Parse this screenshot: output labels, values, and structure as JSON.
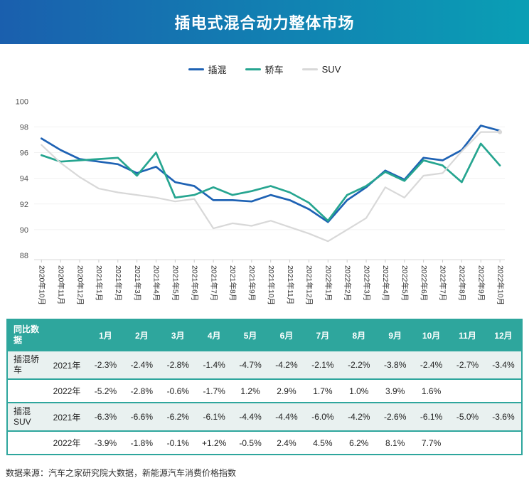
{
  "header": {
    "title": "插电式混合动力整体市场",
    "gradient_left": "#1a5fae",
    "gradient_right": "#0a9fb5"
  },
  "legend": [
    {
      "label": "插混",
      "color": "#1e62b4"
    },
    {
      "label": "轿车",
      "color": "#26a590"
    },
    {
      "label": "SUV",
      "color": "#d8d8d8"
    }
  ],
  "chart_data": {
    "type": "line",
    "title": "",
    "xlabel": "",
    "ylabel": "",
    "ylim": [
      88,
      100
    ],
    "yticks": [
      88,
      90,
      92,
      94,
      96,
      98,
      100
    ],
    "grid": "faint-horizontal",
    "legend_position": "top",
    "categories": [
      "2020年10月",
      "2020年11月",
      "2020年12月",
      "2021年1月",
      "2021年2月",
      "2021年3月",
      "2021年4月",
      "2021年5月",
      "2021年6月",
      "2021年7月",
      "2021年8月",
      "2021年9月",
      "2021年10月",
      "2021年11月",
      "2021年12月",
      "2022年1月",
      "2022年2月",
      "2022年3月",
      "2022年4月",
      "2022年5月",
      "2022年6月",
      "2022年7月",
      "2022年8月",
      "2022年9月",
      "2022年10月"
    ],
    "series": [
      {
        "name": "插混",
        "color": "#1e62b4",
        "values": [
          97.1,
          96.2,
          95.5,
          95.3,
          95.1,
          94.4,
          94.9,
          93.7,
          93.4,
          92.3,
          92.3,
          92.2,
          92.7,
          92.3,
          91.6,
          90.6,
          92.3,
          93.3,
          94.6,
          93.9,
          95.6,
          95.4,
          96.2,
          98.1,
          97.7
        ]
      },
      {
        "name": "轿车",
        "color": "#26a590",
        "values": [
          95.8,
          95.3,
          95.4,
          95.5,
          95.6,
          94.2,
          96.0,
          92.5,
          92.7,
          93.3,
          92.7,
          93.0,
          93.4,
          92.9,
          92.1,
          90.7,
          92.7,
          93.4,
          94.5,
          93.8,
          95.4,
          95.0,
          93.7,
          96.7,
          95.0
        ]
      },
      {
        "name": "SUV",
        "color": "#d8d8d8",
        "values": [
          96.6,
          95.2,
          94.1,
          93.2,
          92.9,
          92.7,
          92.5,
          92.2,
          92.4,
          90.1,
          90.5,
          90.3,
          90.7,
          90.2,
          89.7,
          89.1,
          90.0,
          90.9,
          93.3,
          92.5,
          94.2,
          94.4,
          96.1,
          97.6,
          97.6
        ]
      }
    ]
  },
  "table": {
    "accent": "#2ea69d",
    "shade_bg": "#e9f1f0",
    "corner": "同比数据",
    "months": [
      "1月",
      "2月",
      "3月",
      "4月",
      "5月",
      "6月",
      "7月",
      "8月",
      "9月",
      "10月",
      "11月",
      "12月"
    ],
    "rows": [
      {
        "group": "插混轿车",
        "year": "2021年",
        "shaded": true,
        "values": [
          "-2.3%",
          "-2.4%",
          "-2.8%",
          "-1.4%",
          "-4.7%",
          "-4.2%",
          "-2.1%",
          "-2.2%",
          "-3.8%",
          "-2.4%",
          "-2.7%",
          "-3.4%"
        ]
      },
      {
        "group": "",
        "year": "2022年",
        "shaded": false,
        "values": [
          "-5.2%",
          "-2.8%",
          "-0.6%",
          "-1.7%",
          "1.2%",
          "2.9%",
          "1.7%",
          "1.0%",
          "3.9%",
          "1.6%",
          "",
          ""
        ]
      },
      {
        "group": "插混SUV",
        "year": "2021年",
        "shaded": true,
        "values": [
          "-6.3%",
          "-6.6%",
          "-6.2%",
          "-6.1%",
          "-4.4%",
          "-4.4%",
          "-6.0%",
          "-4.2%",
          "-2.6%",
          "-6.1%",
          "-5.0%",
          "-3.6%"
        ]
      },
      {
        "group": "",
        "year": "2022年",
        "shaded": false,
        "values": [
          "-3.9%",
          "-1.8%",
          "-0.1%",
          "+1.2%",
          "-0.5%",
          "2.4%",
          "4.5%",
          "6.2%",
          "8.1%",
          "7.7%",
          "",
          ""
        ]
      }
    ]
  },
  "footer": {
    "source": "数据来源：汽车之家研究院大数据，新能源汽车消费价格指数"
  }
}
